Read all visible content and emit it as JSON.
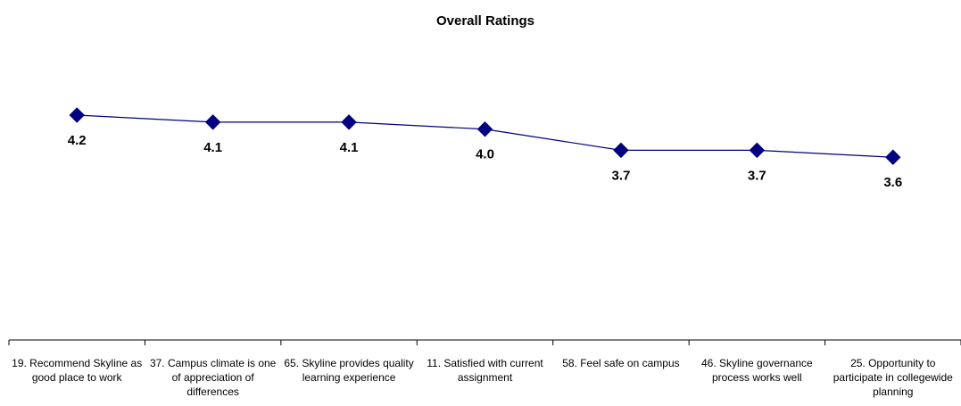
{
  "chart_data": {
    "type": "line",
    "title": "Overall Ratings",
    "categories": [
      "19. Recommend Skyline as good place to work",
      "37. Campus climate is one of appreciation of differences",
      "65. Skyline provides quality learning experience",
      "11. Satisfied with current assignment",
      "58. Feel safe on campus",
      "46. Skyline governance process works well",
      "25. Opportunity to participate in collegewide planning"
    ],
    "series": [
      {
        "name": "Overall Ratings",
        "color": "#000080",
        "values": [
          4.2,
          4.1,
          4.1,
          4.0,
          3.7,
          3.7,
          3.6
        ],
        "value_labels": [
          "4.2",
          "4.1",
          "4.1",
          "4.0",
          "3.7",
          "3.7",
          "3.6"
        ]
      }
    ],
    "ylim": [
      1,
      5
    ]
  }
}
